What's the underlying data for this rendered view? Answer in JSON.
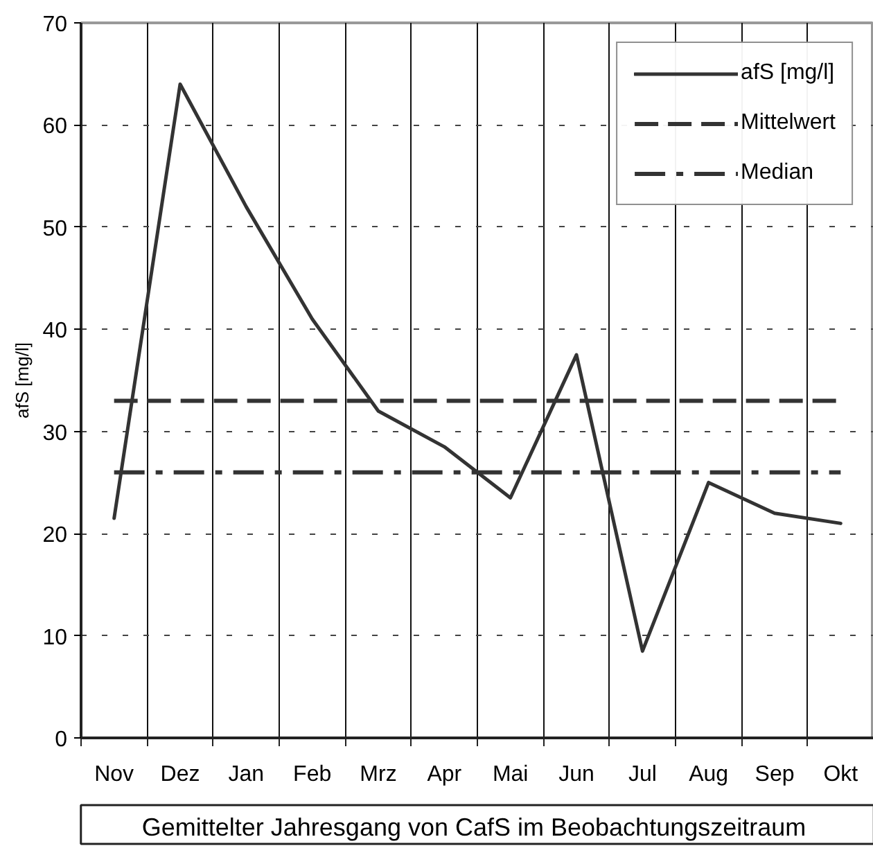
{
  "chart_data": {
    "type": "line",
    "title": "Gemittelter Jahresgang  von CafS im Beobachtungszeitraum",
    "ylabel": "afS [mg/l]",
    "categories": [
      "Nov",
      "Dez",
      "Jan",
      "Feb",
      "Mrz",
      "Apr",
      "Mai",
      "Jun",
      "Jul",
      "Aug",
      "Sep",
      "Okt"
    ],
    "series": [
      {
        "name": "afS [mg/l]",
        "color": "#333333",
        "values": [
          21.5,
          64,
          52,
          41,
          32,
          28.5,
          23.5,
          37.5,
          8.5,
          25,
          22,
          21
        ]
      }
    ],
    "ref_lines": [
      {
        "axis": "y",
        "value": 33,
        "label": "Mittelwert",
        "color": "#333333",
        "line_style": "dashed"
      },
      {
        "axis": "y",
        "value": 26,
        "label": "Median",
        "color": "#333333",
        "line_style": "dashdot"
      }
    ],
    "ylim": [
      0,
      70
    ],
    "yticks": [
      0,
      10,
      20,
      30,
      40,
      50,
      60,
      70
    ],
    "grid": true,
    "legend": "top right"
  }
}
